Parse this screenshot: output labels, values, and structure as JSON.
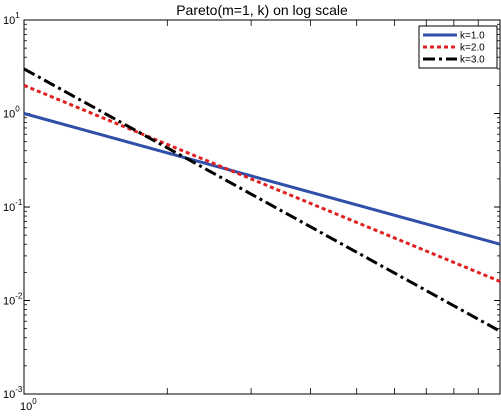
{
  "chart_data": {
    "type": "line",
    "title": "Pareto(m=1, k) on log scale",
    "xlabel": "",
    "ylabel": "",
    "xscale": "log",
    "yscale": "log",
    "xlim": [
      1,
      10
    ],
    "ylim": [
      0.001,
      10
    ],
    "grid": false,
    "legend_position": "top-right",
    "x_ticks": [
      {
        "base": "10",
        "exp": "0"
      }
    ],
    "y_ticks": [
      {
        "base": "10",
        "exp": "1"
      },
      {
        "base": "10",
        "exp": "0"
      },
      {
        "base": "10",
        "exp": "-1"
      },
      {
        "base": "10",
        "exp": "-2"
      },
      {
        "base": "10",
        "exp": "-3"
      }
    ],
    "series": [
      {
        "name": "k=1.0",
        "color": "#2f4fa8",
        "style": "solid",
        "x": [
          1,
          10
        ],
        "y": [
          1,
          0.04
        ]
      },
      {
        "name": "k=2.0",
        "color": "#e02020",
        "style": "dotted",
        "x": [
          1,
          10
        ],
        "y": [
          2,
          0.016
        ]
      },
      {
        "name": "k=3.0",
        "color": "#000000",
        "style": "dash-dot",
        "x": [
          1,
          10
        ],
        "y": [
          3,
          0.0047
        ]
      }
    ]
  }
}
